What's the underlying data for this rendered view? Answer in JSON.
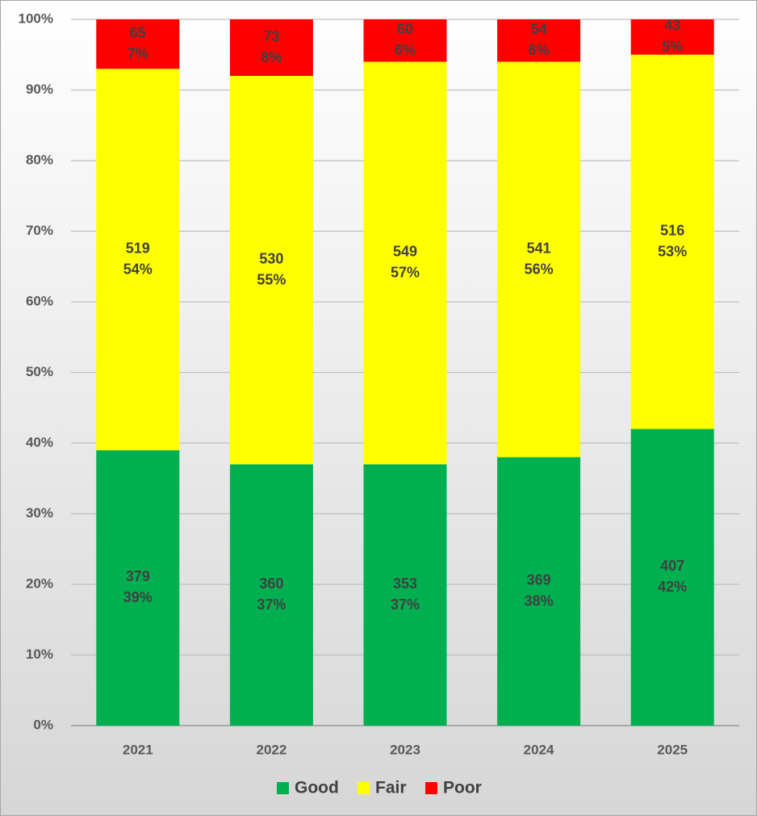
{
  "chart_data": {
    "type": "stacked_bar",
    "categories": [
      "2021",
      "2022",
      "2023",
      "2024",
      "2025"
    ],
    "series": [
      {
        "name": "Good",
        "color": "#00b050",
        "values": [
          39,
          37,
          37,
          38,
          42
        ],
        "value_labels": [
          "39%",
          "37%",
          "37%",
          "38%",
          "42%"
        ],
        "counts": [
          379,
          360,
          353,
          369,
          407
        ]
      },
      {
        "name": "Fair",
        "color": "#ffff00",
        "values": [
          54,
          55,
          57,
          56,
          53
        ],
        "value_labels": [
          "54%",
          "55%",
          "57%",
          "56%",
          "53%"
        ],
        "counts": [
          519,
          530,
          549,
          541,
          516
        ]
      },
      {
        "name": "Poor",
        "color": "#ff0000",
        "values": [
          7,
          8,
          6,
          6,
          5
        ],
        "value_labels": [
          "7%",
          "8%",
          "6%",
          "6%",
          "5%"
        ],
        "counts": [
          65,
          73,
          60,
          54,
          43
        ]
      }
    ],
    "ylim": [
      0,
      100
    ],
    "yticks": [
      {
        "value": 0,
        "label": "0%"
      },
      {
        "value": 10,
        "label": "10%"
      },
      {
        "value": 20,
        "label": "20%"
      },
      {
        "value": 30,
        "label": "30%"
      },
      {
        "value": 40,
        "label": "40%"
      },
      {
        "value": 50,
        "label": "50%"
      },
      {
        "value": 60,
        "label": "60%"
      },
      {
        "value": 70,
        "label": "70%"
      },
      {
        "value": 80,
        "label": "80%"
      },
      {
        "value": 90,
        "label": "90%"
      },
      {
        "value": 100,
        "label": "100%"
      }
    ],
    "grid": true,
    "legend": "bottom"
  }
}
